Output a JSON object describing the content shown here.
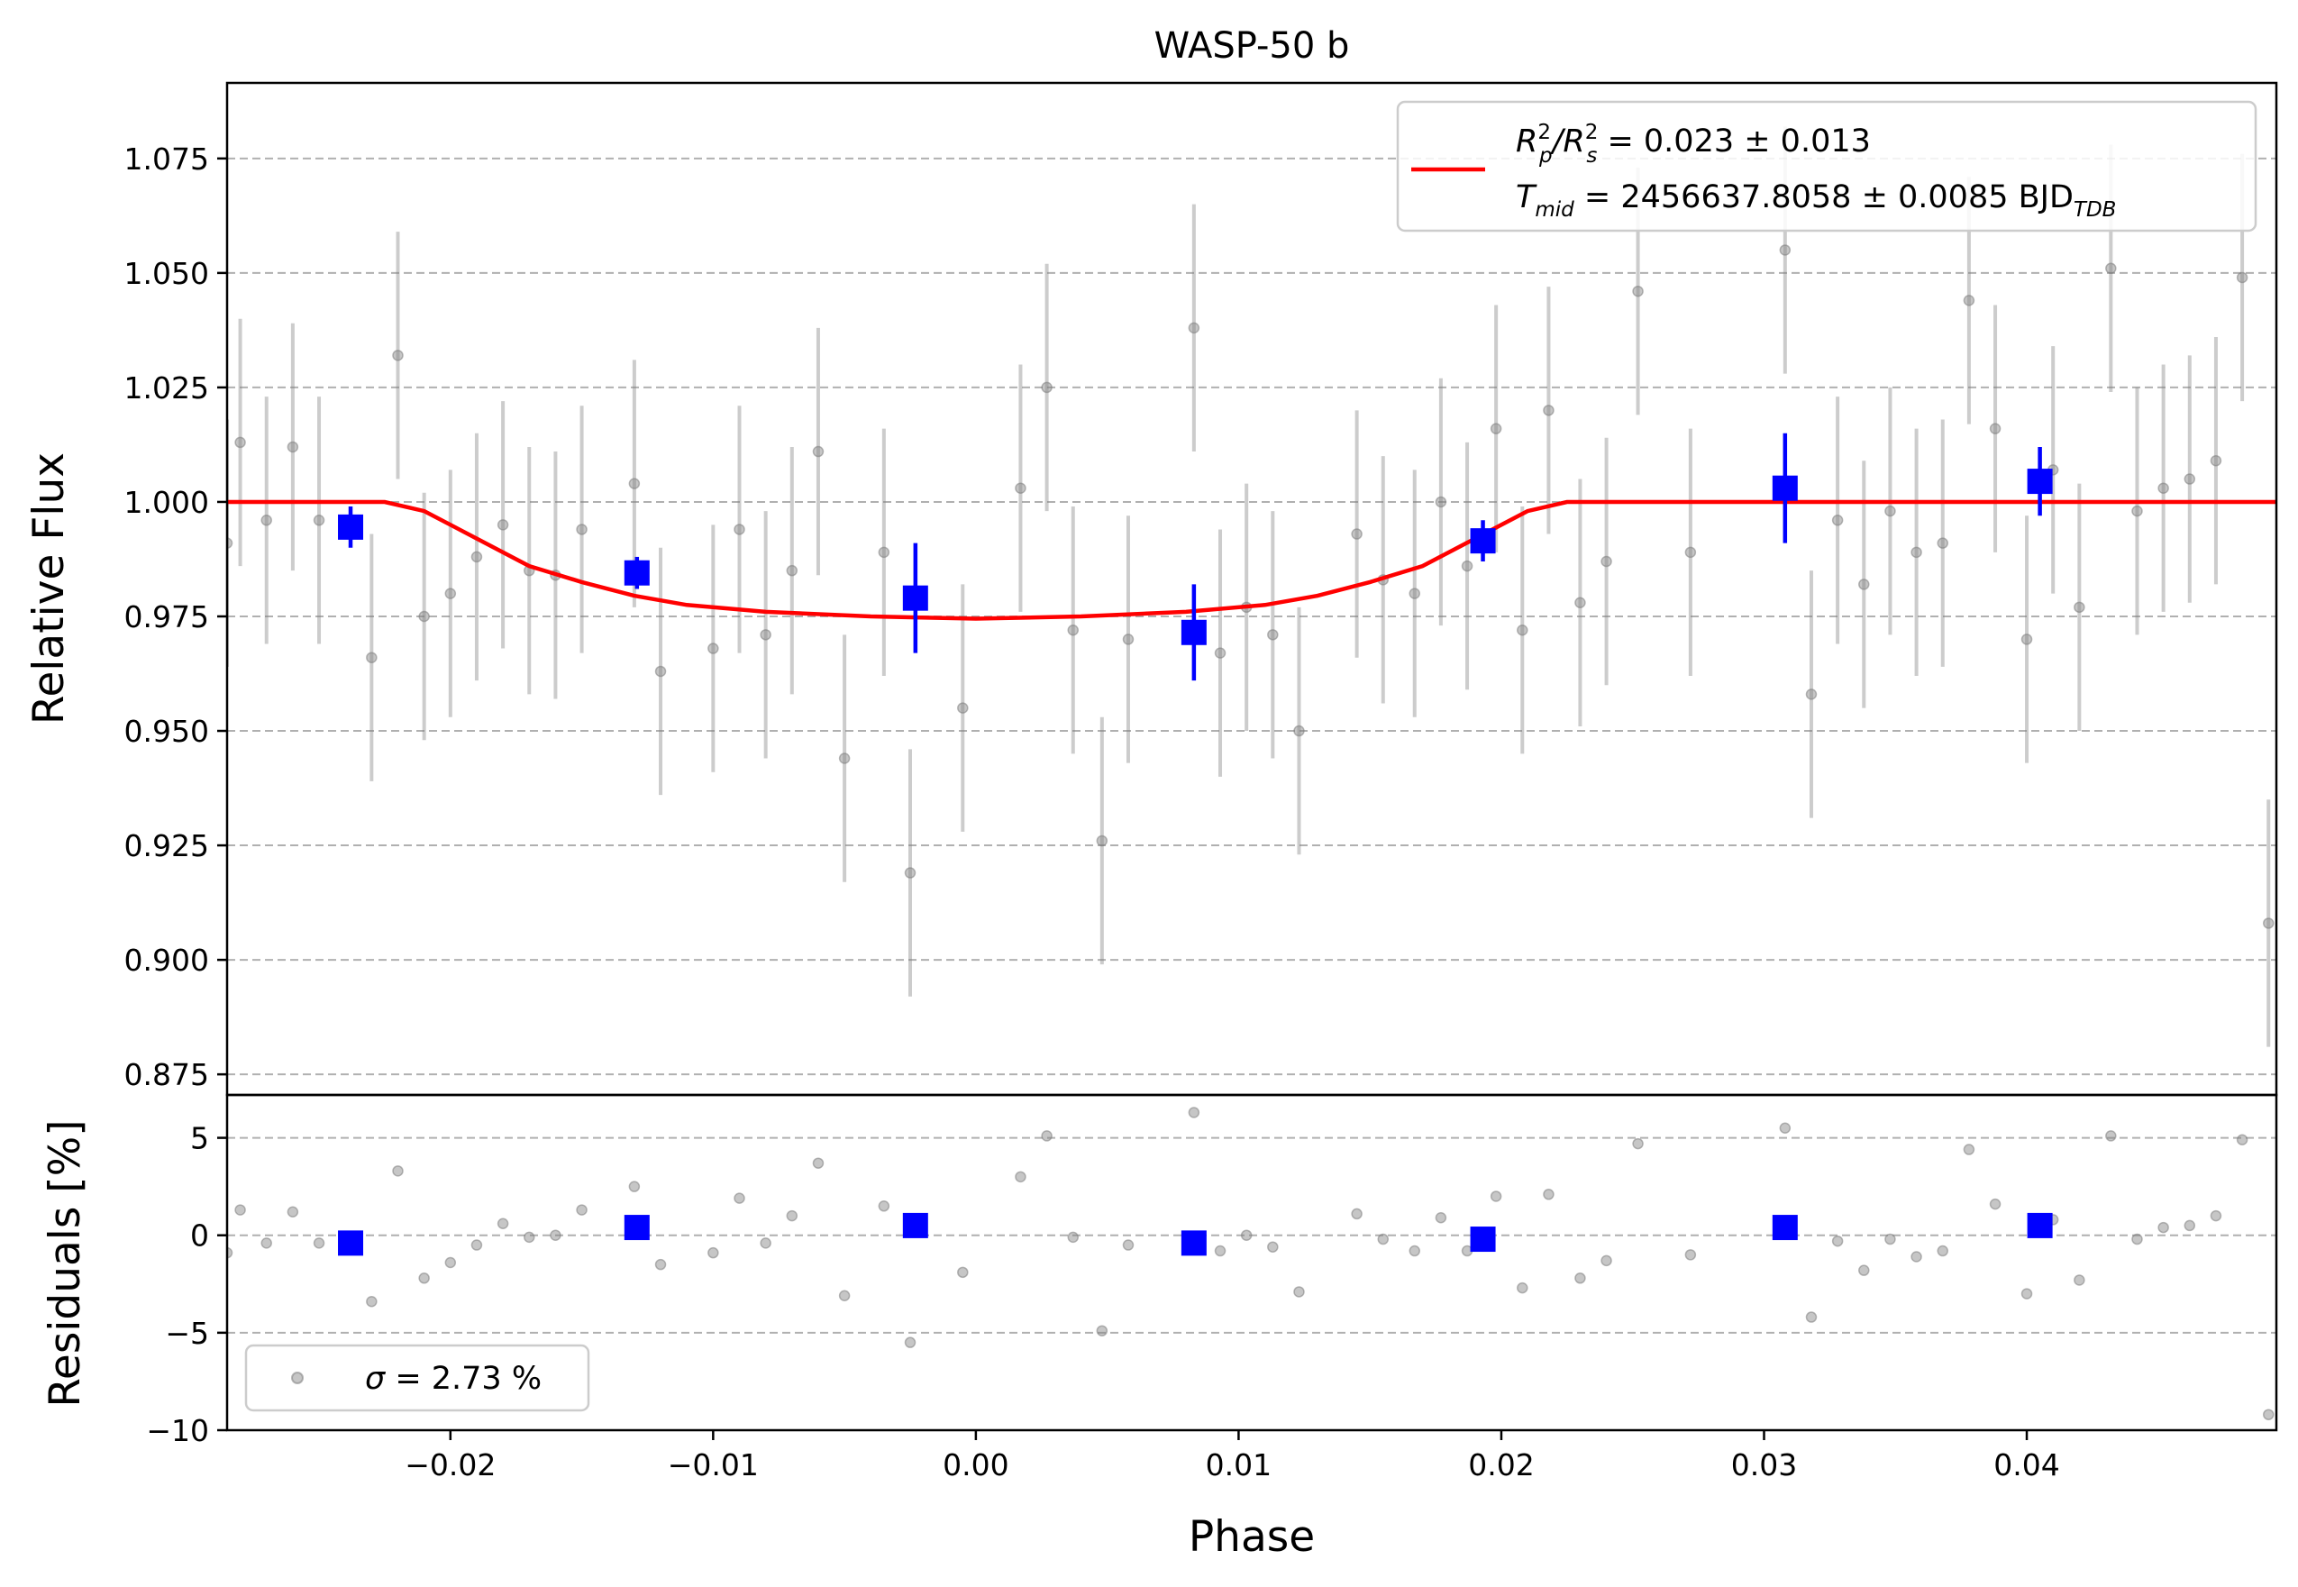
{
  "chart_data": {
    "type": "scatter",
    "title": "WASP-50 b",
    "xlabel": "Phase",
    "xlim": [
      -0.0285,
      0.0495
    ],
    "xticks": [
      -0.02,
      -0.01,
      0.0,
      0.01,
      0.02,
      0.03,
      0.04
    ],
    "xtick_labels": [
      "−0.02",
      "−0.01",
      "0.00",
      "0.01",
      "0.02",
      "0.03",
      "0.04"
    ],
    "top_panel": {
      "ylabel": "Relative Flux",
      "ylim": [
        0.8705,
        1.0915
      ],
      "yticks": [
        0.875,
        0.9,
        0.925,
        0.95,
        0.975,
        1.0,
        1.025,
        1.05,
        1.075
      ],
      "ytick_labels": [
        "0.875",
        "0.900",
        "0.925",
        "0.950",
        "0.975",
        "1.000",
        "1.025",
        "1.050",
        "1.075"
      ],
      "grid": "dashed horizontal",
      "raw_data": {
        "color": "#808080",
        "error": 0.027,
        "points": [
          [
            -0.0285,
            0.991
          ],
          [
            -0.028,
            1.013
          ],
          [
            -0.027,
            0.996
          ],
          [
            -0.026,
            1.012
          ],
          [
            -0.025,
            0.996
          ],
          [
            -0.023,
            0.966
          ],
          [
            -0.022,
            1.032
          ],
          [
            -0.021,
            0.975
          ],
          [
            -0.02,
            0.98
          ],
          [
            -0.019,
            0.988
          ],
          [
            -0.018,
            0.995
          ],
          [
            -0.017,
            0.985
          ],
          [
            -0.016,
            0.984
          ],
          [
            -0.015,
            0.994
          ],
          [
            -0.013,
            1.004
          ],
          [
            -0.012,
            0.963
          ],
          [
            -0.01,
            0.968
          ],
          [
            -0.009,
            0.994
          ],
          [
            -0.008,
            0.971
          ],
          [
            -0.007,
            0.985
          ],
          [
            -0.006,
            1.011
          ],
          [
            -0.005,
            0.944
          ],
          [
            -0.0035,
            0.989
          ],
          [
            -0.0025,
            0.919
          ],
          [
            -0.0005,
            0.955
          ],
          [
            0.0017,
            1.003
          ],
          [
            0.0027,
            1.025
          ],
          [
            0.0037,
            0.972
          ],
          [
            0.0048,
            0.926
          ],
          [
            0.0058,
            0.97
          ],
          [
            0.0083,
            1.038
          ],
          [
            0.0093,
            0.967
          ],
          [
            0.0103,
            0.977
          ],
          [
            0.0113,
            0.971
          ],
          [
            0.0123,
            0.95
          ],
          [
            0.0145,
            0.993
          ],
          [
            0.0155,
            0.983
          ],
          [
            0.0167,
            0.98
          ],
          [
            0.0177,
            1.0
          ],
          [
            0.0187,
            0.986
          ],
          [
            0.0198,
            1.016
          ],
          [
            0.0208,
            0.972
          ],
          [
            0.0218,
            1.02
          ],
          [
            0.023,
            0.978
          ],
          [
            0.024,
            0.987
          ],
          [
            0.0252,
            1.046
          ],
          [
            0.0272,
            0.989
          ],
          [
            0.0308,
            1.055
          ],
          [
            0.0318,
            0.958
          ],
          [
            0.0328,
            0.996
          ],
          [
            0.0338,
            0.982
          ],
          [
            0.0348,
            0.998
          ],
          [
            0.0358,
            0.989
          ],
          [
            0.0368,
            0.991
          ],
          [
            0.0378,
            1.044
          ],
          [
            0.0388,
            1.016
          ],
          [
            0.04,
            0.97
          ],
          [
            0.041,
            1.007
          ],
          [
            0.042,
            0.977
          ],
          [
            0.0432,
            1.051
          ],
          [
            0.0442,
            0.998
          ],
          [
            0.0452,
            1.003
          ],
          [
            0.0462,
            1.005
          ],
          [
            0.0472,
            1.009
          ],
          [
            0.0482,
            1.049
          ],
          [
            0.0492,
            0.908
          ]
        ]
      },
      "binned_data": {
        "color": "#0000ff",
        "points": [
          [
            -0.0238,
            0.9945,
            0.0045
          ],
          [
            -0.0129,
            0.9845,
            0.0035
          ],
          [
            -0.0023,
            0.979,
            0.012
          ],
          [
            0.0083,
            0.9715,
            0.0105
          ],
          [
            0.0193,
            0.9915,
            0.0045
          ],
          [
            0.0308,
            1.003,
            0.012
          ],
          [
            0.0405,
            1.0045,
            0.0075
          ]
        ]
      },
      "model": {
        "color": "#ff0000",
        "points": [
          [
            -0.0285,
            1.0
          ],
          [
            -0.0225,
            1.0
          ],
          [
            -0.021,
            0.998
          ],
          [
            -0.019,
            0.992
          ],
          [
            -0.017,
            0.986
          ],
          [
            -0.015,
            0.9825
          ],
          [
            -0.013,
            0.9795
          ],
          [
            -0.011,
            0.9775
          ],
          [
            -0.008,
            0.976
          ],
          [
            -0.004,
            0.975
          ],
          [
            0.0,
            0.9745
          ],
          [
            0.004,
            0.975
          ],
          [
            0.008,
            0.976
          ],
          [
            0.011,
            0.9775
          ],
          [
            0.013,
            0.9795
          ],
          [
            0.015,
            0.9825
          ],
          [
            0.017,
            0.986
          ],
          [
            0.019,
            0.992
          ],
          [
            0.021,
            0.998
          ],
          [
            0.0225,
            1.0
          ],
          [
            0.0495,
            1.0
          ]
        ]
      },
      "legend": {
        "placement": "top-right",
        "line1": "R²p/R²s = 0.023 ± 0.013",
        "line1_r": "R",
        "line1_sup": "2",
        "line1_sub_p": "p",
        "line1_slash": "/R",
        "line1_sub_s": "s",
        "line1_value": " = 0.023 ± 0.013",
        "line2_t": "T",
        "line2_sub": "mid",
        "line2_value": " = 2456637.8058 ± 0.0085 BJD",
        "line2_sub_tdb": "TDB"
      }
    },
    "bottom_panel": {
      "ylabel": "Residuals [%]",
      "ylim": [
        -10.0,
        7.2
      ],
      "yticks": [
        -10,
        -5,
        0,
        5
      ],
      "ytick_labels": [
        "−10",
        "−5",
        "0",
        "5"
      ],
      "grid": "dashed horizontal",
      "raw_data": {
        "color": "#808080",
        "points": [
          [
            -0.0285,
            -0.9
          ],
          [
            -0.028,
            1.3
          ],
          [
            -0.027,
            -0.4
          ],
          [
            -0.026,
            1.2
          ],
          [
            -0.025,
            -0.4
          ],
          [
            -0.023,
            -3.4
          ],
          [
            -0.022,
            3.3
          ],
          [
            -0.021,
            -2.2
          ],
          [
            -0.02,
            -1.4
          ],
          [
            -0.019,
            -0.5
          ],
          [
            -0.018,
            0.6
          ],
          [
            -0.017,
            -0.1
          ],
          [
            -0.016,
            0.0
          ],
          [
            -0.015,
            1.3
          ],
          [
            -0.013,
            2.5
          ],
          [
            -0.012,
            -1.5
          ],
          [
            -0.01,
            -0.9
          ],
          [
            -0.009,
            1.9
          ],
          [
            -0.008,
            -0.4
          ],
          [
            -0.007,
            1.0
          ],
          [
            -0.006,
            3.7
          ],
          [
            -0.005,
            -3.1
          ],
          [
            -0.0035,
            1.5
          ],
          [
            -0.0025,
            -5.5
          ],
          [
            -0.0005,
            -1.9
          ],
          [
            0.0017,
            3.0
          ],
          [
            0.0027,
            5.1
          ],
          [
            0.0037,
            -0.1
          ],
          [
            0.0048,
            -4.9
          ],
          [
            0.0058,
            -0.5
          ],
          [
            0.0083,
            6.3
          ],
          [
            0.0093,
            -0.8
          ],
          [
            0.0103,
            0.0
          ],
          [
            0.0113,
            -0.6
          ],
          [
            0.0123,
            -2.9
          ],
          [
            0.0145,
            1.1
          ],
          [
            0.0155,
            -0.2
          ],
          [
            0.0167,
            -0.8
          ],
          [
            0.0177,
            0.9
          ],
          [
            0.0187,
            -0.8
          ],
          [
            0.0198,
            2.0
          ],
          [
            0.0208,
            -2.7
          ],
          [
            0.0218,
            2.1
          ],
          [
            0.023,
            -2.2
          ],
          [
            0.024,
            -1.3
          ],
          [
            0.0252,
            4.7
          ],
          [
            0.0272,
            -1.0
          ],
          [
            0.0308,
            5.5
          ],
          [
            0.0318,
            -4.2
          ],
          [
            0.0328,
            -0.3
          ],
          [
            0.0338,
            -1.8
          ],
          [
            0.0348,
            -0.2
          ],
          [
            0.0358,
            -1.1
          ],
          [
            0.0368,
            -0.8
          ],
          [
            0.0378,
            4.4
          ],
          [
            0.0388,
            1.6
          ],
          [
            0.04,
            -3.0
          ],
          [
            0.041,
            0.8
          ],
          [
            0.042,
            -2.3
          ],
          [
            0.0432,
            5.1
          ],
          [
            0.0442,
            -0.2
          ],
          [
            0.0452,
            0.4
          ],
          [
            0.0462,
            0.5
          ],
          [
            0.0472,
            1.0
          ],
          [
            0.0482,
            4.9
          ],
          [
            0.0492,
            -9.2
          ]
        ]
      },
      "binned_data": {
        "color": "#0000ff",
        "points": [
          [
            -0.0238,
            -0.4
          ],
          [
            -0.0129,
            0.4
          ],
          [
            -0.0023,
            0.5
          ],
          [
            0.0083,
            -0.4
          ],
          [
            0.0193,
            -0.2
          ],
          [
            0.0308,
            0.4
          ],
          [
            0.0405,
            0.5
          ]
        ]
      },
      "legend": {
        "placement": "bottom-left",
        "sigma_symbol": "σ",
        "label": " = 2.73 %"
      }
    }
  }
}
